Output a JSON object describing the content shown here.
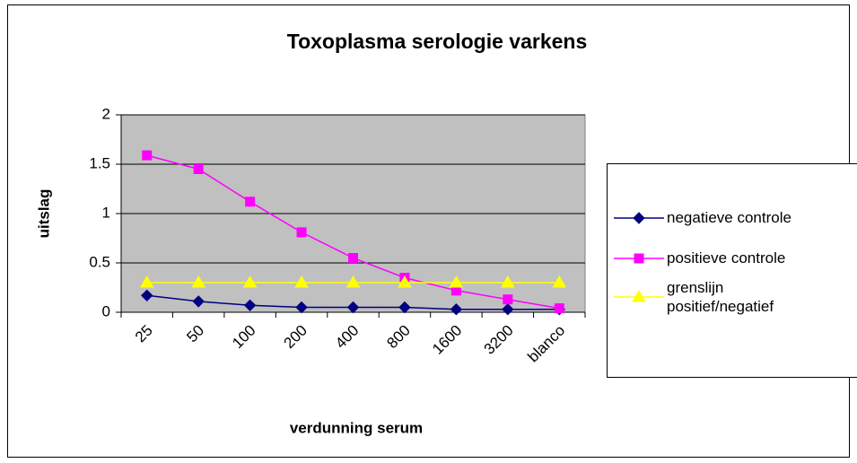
{
  "chart_data": {
    "type": "line",
    "title": "Toxoplasma serologie varkens",
    "x_label": "verdunning serum",
    "y_label": "uitslag",
    "categories": [
      "25",
      "50",
      "100",
      "200",
      "400",
      "800",
      "1600",
      "3200",
      "blanco"
    ],
    "series": [
      {
        "name": "negatieve controle",
        "color": "#000080",
        "marker": "diamond",
        "values": [
          0.17,
          0.11,
          0.07,
          0.05,
          0.05,
          0.05,
          0.03,
          0.03,
          0.03
        ]
      },
      {
        "name": "positieve controle",
        "color": "#ff00ff",
        "marker": "square",
        "values": [
          1.59,
          1.45,
          1.12,
          0.81,
          0.55,
          0.35,
          0.22,
          0.13,
          0.04
        ]
      },
      {
        "name": "grenslijn positief/negatief",
        "color": "#ffff00",
        "marker": "triangle",
        "values": [
          0.3,
          0.3,
          0.3,
          0.3,
          0.3,
          0.3,
          0.3,
          0.3,
          0.3
        ]
      }
    ],
    "ylim": [
      0,
      2
    ],
    "yticks": [
      0,
      0.5,
      1,
      1.5,
      2
    ],
    "grid": true,
    "legend": "right"
  }
}
